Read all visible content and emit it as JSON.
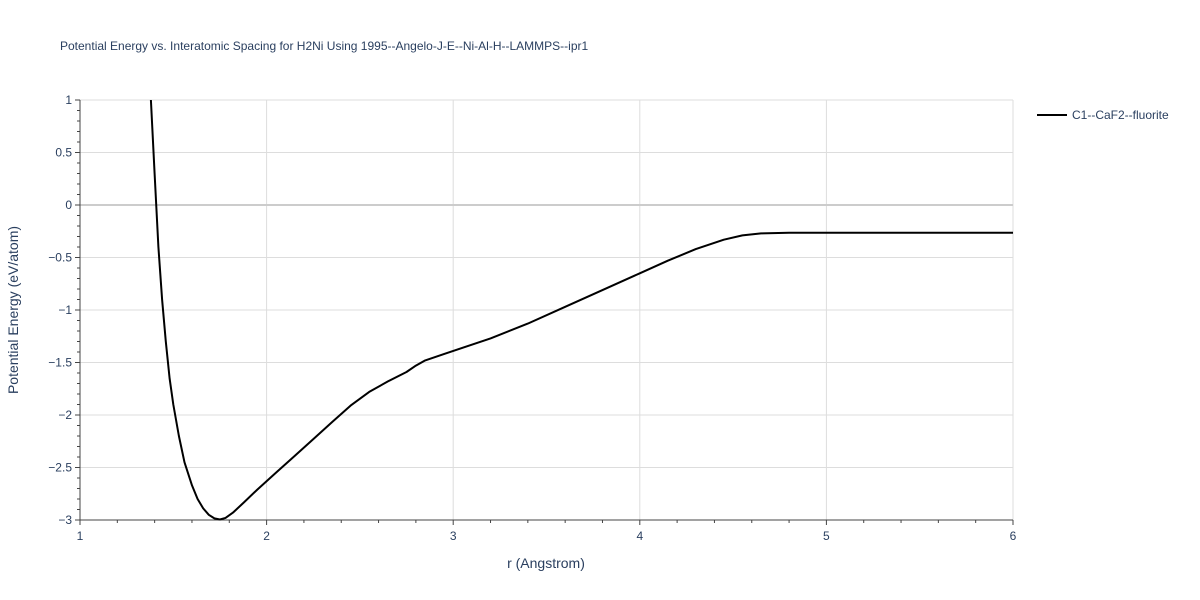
{
  "chart_data": {
    "type": "line",
    "title": "Potential Energy vs. Interatomic Spacing for H2Ni Using 1995--Angelo-J-E--Ni-Al-H--LAMMPS--ipr1",
    "xlabel": "r (Angstrom)",
    "ylabel": "Potential Energy (eV/atom)",
    "xlim": [
      1,
      6
    ],
    "ylim": [
      -3,
      1
    ],
    "x_ticks": [
      "1",
      "2",
      "3",
      "4",
      "5",
      "6"
    ],
    "y_ticks": [
      "1",
      "0.5",
      "0",
      "−0.5",
      "−1",
      "−1.5",
      "−2",
      "−2.5",
      "−3"
    ],
    "x_tick_values": [
      1,
      2,
      3,
      4,
      5,
      6
    ],
    "y_tick_values": [
      1,
      0.5,
      0,
      -0.5,
      -1,
      -1.5,
      -2,
      -2.5,
      -3
    ],
    "grid": true,
    "legend_position": "top-right",
    "series": [
      {
        "name": "C1--CaF2--fluorite",
        "color": "#000000",
        "x": [
          1.38,
          1.4,
          1.42,
          1.44,
          1.46,
          1.48,
          1.5,
          1.53,
          1.56,
          1.6,
          1.63,
          1.66,
          1.69,
          1.72,
          1.75,
          1.78,
          1.82,
          1.88,
          1.95,
          2.05,
          2.15,
          2.25,
          2.35,
          2.45,
          2.55,
          2.65,
          2.75,
          2.8,
          2.85,
          2.95,
          3.05,
          3.2,
          3.4,
          3.6,
          3.8,
          4.0,
          4.15,
          4.3,
          4.45,
          4.55,
          4.65,
          4.8,
          5.0,
          5.5,
          6.0
        ],
        "y": [
          1.0,
          0.3,
          -0.4,
          -0.9,
          -1.3,
          -1.65,
          -1.9,
          -2.2,
          -2.45,
          -2.67,
          -2.8,
          -2.89,
          -2.95,
          -2.985,
          -2.995,
          -2.98,
          -2.93,
          -2.83,
          -2.71,
          -2.55,
          -2.39,
          -2.23,
          -2.07,
          -1.91,
          -1.78,
          -1.68,
          -1.59,
          -1.53,
          -1.48,
          -1.42,
          -1.36,
          -1.27,
          -1.13,
          -0.97,
          -0.81,
          -0.65,
          -0.53,
          -0.42,
          -0.33,
          -0.29,
          -0.27,
          -0.265,
          -0.265,
          -0.265,
          -0.265
        ]
      }
    ]
  }
}
